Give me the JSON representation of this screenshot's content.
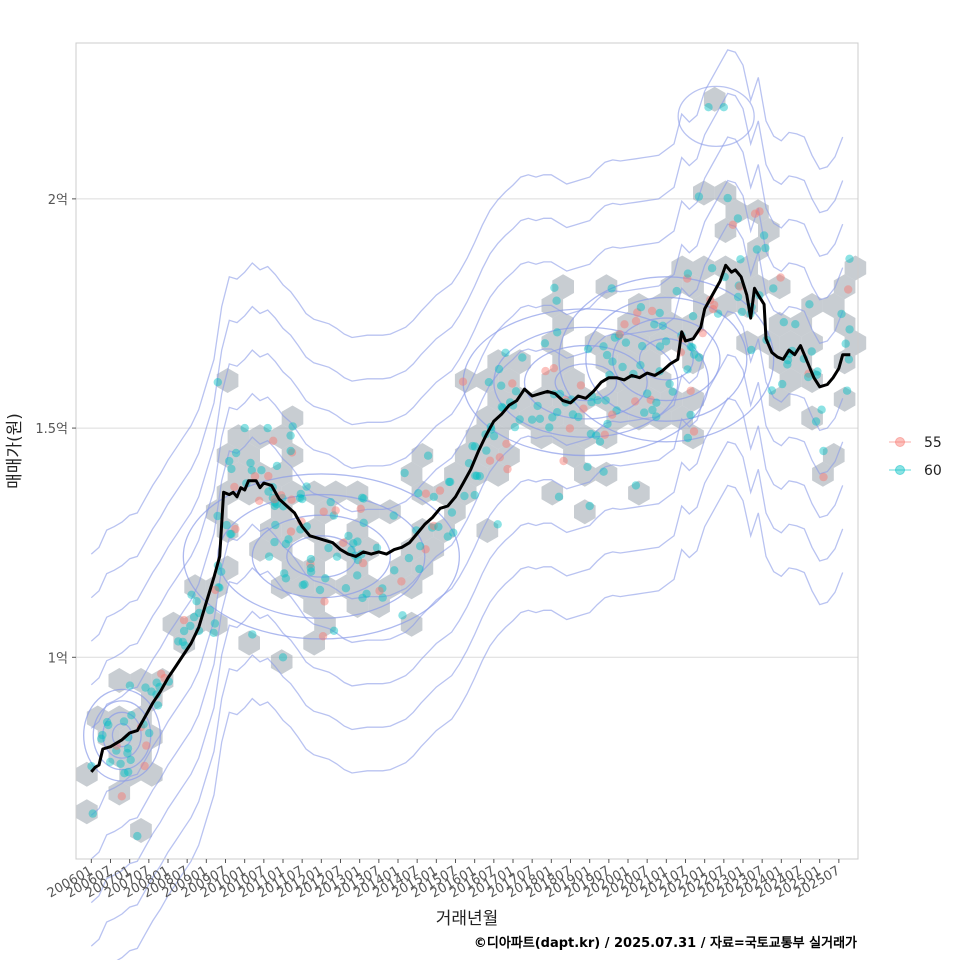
{
  "chart_data": {
    "type": "scatter",
    "xlabel": "거래년월",
    "ylabel": "매매가(원)",
    "caption": "©디아파트(dapt.kr) / 2025.07.31 / 자료=국토교통부 실거래가",
    "x_ticks": [
      "200601",
      "200607",
      "200701",
      "200707",
      "200801",
      "200807",
      "200901",
      "200907",
      "201001",
      "201007",
      "201101",
      "201107",
      "201201",
      "201207",
      "201301",
      "201307",
      "201401",
      "201407",
      "201501",
      "201507",
      "201601",
      "201607",
      "201701",
      "201707",
      "201801",
      "201807",
      "201901",
      "201907",
      "202001",
      "202007",
      "202101",
      "202107",
      "202201",
      "202207",
      "202301",
      "202307",
      "202401",
      "202407",
      "202501",
      "202507"
    ],
    "y_ticks": [
      {
        "value": 100000000,
        "label": "1억"
      },
      {
        "value": 150000000,
        "label": "1.5억"
      },
      {
        "value": 200000000,
        "label": "2억"
      }
    ],
    "xlim": [
      2005.6,
      2026.0
    ],
    "ylim": [
      56000000,
      234000000
    ],
    "legend": {
      "position": "right",
      "entries": [
        {
          "name": "55",
          "color": "#F8766D"
        },
        {
          "name": "60",
          "color": "#00BFC4"
        }
      ]
    },
    "colors": {
      "hex_fill": "#9aa4ad",
      "contour": "#8a9be8",
      "trend_line": "#000000",
      "grid": "#dcdcdc",
      "panel_border": "#cccccc"
    },
    "trend_line": [
      [
        2006.0,
        75000000
      ],
      [
        2006.1,
        76000000
      ],
      [
        2006.2,
        76500000
      ],
      [
        2006.3,
        80000000
      ],
      [
        2006.5,
        80500000
      ],
      [
        2006.8,
        82000000
      ],
      [
        2007.0,
        83500000
      ],
      [
        2007.2,
        84000000
      ],
      [
        2007.4,
        87000000
      ],
      [
        2007.6,
        90000000
      ],
      [
        2007.8,
        92500000
      ],
      [
        2008.0,
        95500000
      ],
      [
        2008.2,
        98000000
      ],
      [
        2008.4,
        100500000
      ],
      [
        2008.6,
        103000000
      ],
      [
        2008.8,
        106500000
      ],
      [
        2009.0,
        112000000
      ],
      [
        2009.2,
        117500000
      ],
      [
        2009.35,
        122000000
      ],
      [
        2009.45,
        136000000
      ],
      [
        2009.6,
        135500000
      ],
      [
        2009.7,
        136000000
      ],
      [
        2009.8,
        135000000
      ],
      [
        2009.9,
        137000000
      ],
      [
        2010.0,
        136500000
      ],
      [
        2010.1,
        138500000
      ],
      [
        2010.3,
        138500000
      ],
      [
        2010.4,
        137000000
      ],
      [
        2010.5,
        138000000
      ],
      [
        2010.7,
        137500000
      ],
      [
        2010.9,
        134500000
      ],
      [
        2011.1,
        133000000
      ],
      [
        2011.3,
        131500000
      ],
      [
        2011.5,
        128500000
      ],
      [
        2011.7,
        126500000
      ],
      [
        2011.9,
        126000000
      ],
      [
        2012.1,
        125500000
      ],
      [
        2012.3,
        125000000
      ],
      [
        2012.5,
        123500000
      ],
      [
        2012.7,
        122500000
      ],
      [
        2012.9,
        122000000
      ],
      [
        2013.1,
        123000000
      ],
      [
        2013.3,
        122500000
      ],
      [
        2013.5,
        123000000
      ],
      [
        2013.7,
        122500000
      ],
      [
        2013.9,
        123500000
      ],
      [
        2014.1,
        124000000
      ],
      [
        2014.3,
        125000000
      ],
      [
        2014.5,
        127000000
      ],
      [
        2014.7,
        129000000
      ],
      [
        2014.9,
        130500000
      ],
      [
        2015.1,
        132500000
      ],
      [
        2015.3,
        133000000
      ],
      [
        2015.5,
        135000000
      ],
      [
        2015.7,
        138000000
      ],
      [
        2015.9,
        141000000
      ],
      [
        2016.1,
        145000000
      ],
      [
        2016.3,
        148500000
      ],
      [
        2016.5,
        151500000
      ],
      [
        2016.7,
        153000000
      ],
      [
        2016.9,
        155000000
      ],
      [
        2017.1,
        156000000
      ],
      [
        2017.3,
        158500000
      ],
      [
        2017.5,
        157000000
      ],
      [
        2017.7,
        157500000
      ],
      [
        2017.9,
        158000000
      ],
      [
        2018.1,
        157500000
      ],
      [
        2018.3,
        156000000
      ],
      [
        2018.5,
        155500000
      ],
      [
        2018.7,
        157000000
      ],
      [
        2018.9,
        156500000
      ],
      [
        2019.1,
        158000000
      ],
      [
        2019.3,
        160000000
      ],
      [
        2019.5,
        161000000
      ],
      [
        2019.7,
        161000000
      ],
      [
        2019.9,
        160500000
      ],
      [
        2020.1,
        161500000
      ],
      [
        2020.3,
        161000000
      ],
      [
        2020.5,
        162000000
      ],
      [
        2020.7,
        161500000
      ],
      [
        2020.9,
        162500000
      ],
      [
        2021.1,
        164000000
      ],
      [
        2021.3,
        165000000
      ],
      [
        2021.4,
        171000000
      ],
      [
        2021.5,
        169000000
      ],
      [
        2021.7,
        169500000
      ],
      [
        2021.9,
        172000000
      ],
      [
        2022.0,
        176000000
      ],
      [
        2022.2,
        179000000
      ],
      [
        2022.4,
        182000000
      ],
      [
        2022.55,
        185500000
      ],
      [
        2022.7,
        184000000
      ],
      [
        2022.8,
        184500000
      ],
      [
        2022.95,
        183000000
      ],
      [
        2023.1,
        179000000
      ],
      [
        2023.2,
        174000000
      ],
      [
        2023.3,
        180500000
      ],
      [
        2023.4,
        179000000
      ],
      [
        2023.55,
        177000000
      ],
      [
        2023.6,
        169500000
      ],
      [
        2023.75,
        166500000
      ],
      [
        2023.9,
        165500000
      ],
      [
        2024.05,
        165000000
      ],
      [
        2024.2,
        167000000
      ],
      [
        2024.35,
        166000000
      ],
      [
        2024.5,
        168000000
      ],
      [
        2024.7,
        164000000
      ],
      [
        2024.85,
        161000000
      ],
      [
        2025.0,
        159000000
      ],
      [
        2025.2,
        159500000
      ],
      [
        2025.35,
        161000000
      ],
      [
        2025.5,
        163000000
      ],
      [
        2025.6,
        166000000
      ],
      [
        2025.8,
        166000000
      ]
    ]
  }
}
